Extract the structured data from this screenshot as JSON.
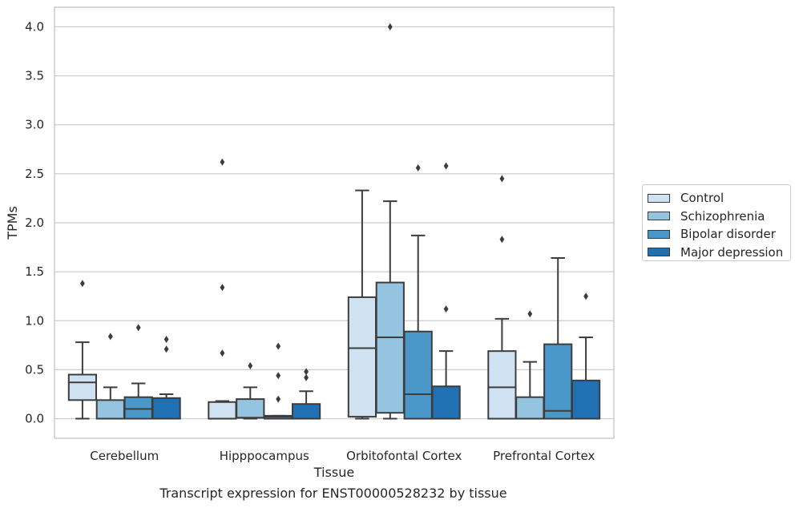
{
  "chart_data": {
    "type": "box",
    "xlabel": "Tissue",
    "ylabel": "TPMs",
    "ylim": [
      -0.2,
      4.2
    ],
    "yticks": [
      0.0,
      0.5,
      1.0,
      1.5,
      2.0,
      2.5,
      3.0,
      3.5,
      4.0
    ],
    "ytick_labels": [
      "0.0",
      "0.5",
      "1.0",
      "1.5",
      "2.0",
      "2.5",
      "3.0",
      "3.5",
      "4.0"
    ],
    "categories": [
      "Cerebellum",
      "Hipppocampus",
      "Orbitofontal Cortex",
      "Prefrontal Cortex"
    ],
    "grid": "horizontal",
    "legend_position": "right",
    "series": [
      {
        "name": "Control",
        "color": "#d0e1f2",
        "boxes": [
          {
            "q1": 0.19,
            "median": 0.37,
            "q3": 0.45,
            "whisker_low": 0.0,
            "whisker_high": 0.78,
            "outliers": [
              1.38
            ]
          },
          {
            "q1": 0.0,
            "median": 0.0,
            "q3": 0.17,
            "whisker_low": 0.0,
            "whisker_high": 0.18,
            "outliers": [
              2.62,
              1.34,
              0.67
            ]
          },
          {
            "q1": 0.02,
            "median": 0.72,
            "q3": 1.24,
            "whisker_low": 0.0,
            "whisker_high": 2.33,
            "outliers": []
          },
          {
            "q1": 0.0,
            "median": 0.32,
            "q3": 0.69,
            "whisker_low": 0.0,
            "whisker_high": 1.02,
            "outliers": [
              2.45,
              1.83
            ]
          }
        ]
      },
      {
        "name": "Schizophrenia",
        "color": "#94c4df",
        "boxes": [
          {
            "q1": 0.0,
            "median": 0.0,
            "q3": 0.19,
            "whisker_low": 0.0,
            "whisker_high": 0.32,
            "outliers": [
              0.84
            ]
          },
          {
            "q1": 0.01,
            "median": 0.01,
            "q3": 0.2,
            "whisker_low": 0.0,
            "whisker_high": 0.32,
            "outliers": [
              0.54
            ]
          },
          {
            "q1": 0.06,
            "median": 0.83,
            "q3": 1.39,
            "whisker_low": 0.0,
            "whisker_high": 2.22,
            "outliers": [
              4.0
            ]
          },
          {
            "q1": 0.0,
            "median": 0.0,
            "q3": 0.22,
            "whisker_low": 0.0,
            "whisker_high": 0.58,
            "outliers": [
              1.07
            ]
          }
        ]
      },
      {
        "name": "Bipolar disorder",
        "color": "#4a98c9",
        "boxes": [
          {
            "q1": 0.0,
            "median": 0.1,
            "q3": 0.22,
            "whisker_low": 0.0,
            "whisker_high": 0.36,
            "outliers": [
              0.93
            ]
          },
          {
            "q1": 0.0,
            "median": 0.02,
            "q3": 0.03,
            "whisker_low": 0.0,
            "whisker_high": 0.03,
            "outliers": [
              0.74,
              0.44,
              0.2
            ]
          },
          {
            "q1": 0.0,
            "median": 0.25,
            "q3": 0.89,
            "whisker_low": 0.0,
            "whisker_high": 1.87,
            "outliers": [
              2.56
            ]
          },
          {
            "q1": 0.0,
            "median": 0.08,
            "q3": 0.76,
            "whisker_low": 0.0,
            "whisker_high": 1.64,
            "outliers": []
          }
        ]
      },
      {
        "name": "Major depression",
        "color": "#2070b4",
        "boxes": [
          {
            "q1": 0.0,
            "median": 0.21,
            "q3": 0.21,
            "whisker_low": 0.0,
            "whisker_high": 0.25,
            "outliers": [
              0.81,
              0.71
            ]
          },
          {
            "q1": 0.0,
            "median": 0.0,
            "q3": 0.15,
            "whisker_low": 0.0,
            "whisker_high": 0.28,
            "outliers": [
              0.48,
              0.42
            ]
          },
          {
            "q1": 0.0,
            "median": 0.0,
            "q3": 0.33,
            "whisker_low": 0.0,
            "whisker_high": 0.69,
            "outliers": [
              2.58,
              1.12
            ]
          },
          {
            "q1": 0.0,
            "median": 0.0,
            "q3": 0.39,
            "whisker_low": 0.0,
            "whisker_high": 0.83,
            "outliers": [
              1.25
            ]
          }
        ]
      }
    ]
  },
  "caption": "Transcript expression for ENST00000528232 by tissue"
}
